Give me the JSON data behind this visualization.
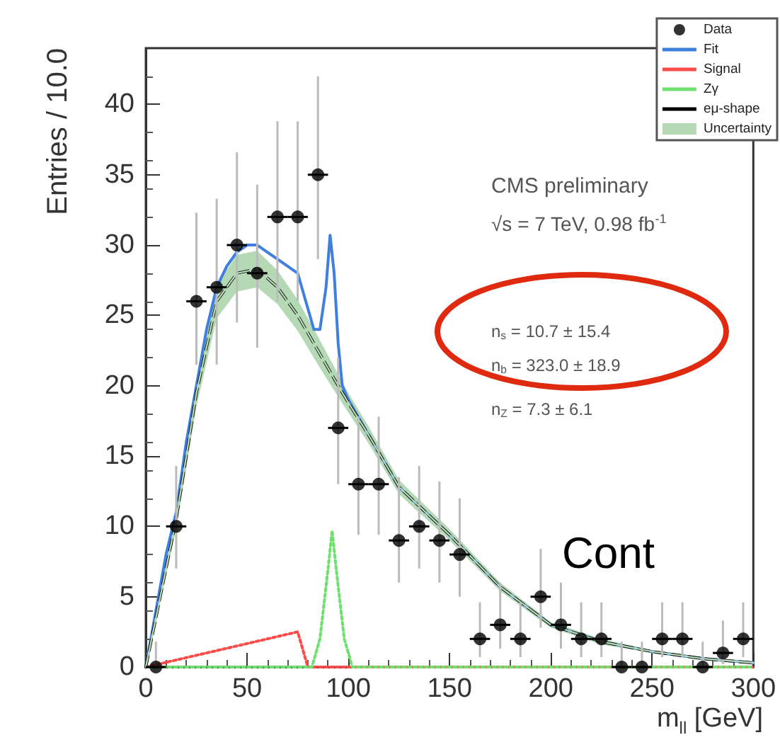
{
  "chart_data": {
    "type": "scatter",
    "xlabel": "m$_{ll}$ [GeV]",
    "ylabel": "Entries / 10.0",
    "xlim": [
      0,
      300
    ],
    "xticks": [
      0,
      50,
      100,
      150,
      200,
      250,
      300
    ],
    "ylim": [
      0,
      44
    ],
    "yticks": [
      0,
      5,
      10,
      15,
      20,
      25,
      30,
      35,
      40
    ],
    "grid": false,
    "legend": "top right",
    "marker": "circle",
    "annotations": [
      "CMS preliminary",
      "√s = 7 TeV, 0.98 fb$^{-1}$",
      "n$_{s}$ = 10.7 ± 15.4",
      "n$_{b}$ = 323.0 ± 18.9",
      "n$_{Z}$ = 7.3 ± 6.1",
      "Cont"
    ],
    "series": [
      {
        "name": "Data",
        "type": "scatter",
        "color": "#000000",
        "x": [
          5,
          15,
          25,
          35,
          45,
          55,
          65,
          75,
          85,
          95,
          105,
          115,
          125,
          135,
          145,
          155,
          165,
          175,
          185,
          195,
          205,
          215,
          225,
          235,
          245,
          255,
          265,
          275,
          285,
          295
        ],
        "values": [
          0,
          10,
          26,
          27,
          30,
          28,
          32,
          32,
          35,
          17,
          13,
          13,
          9,
          10,
          9,
          8,
          2,
          3,
          2,
          5,
          3,
          2,
          2,
          0,
          0,
          2,
          2,
          0,
          1,
          2
        ],
        "errors": [
          [
            0,
            1.8
          ],
          [
            7,
            14.3
          ],
          [
            21.5,
            32.3
          ],
          [
            21.5,
            33.3
          ],
          [
            24.5,
            36.6
          ],
          [
            22.7,
            34.3
          ],
          [
            26,
            38.8
          ],
          [
            26,
            38.8
          ],
          [
            29,
            42
          ],
          [
            13,
            22
          ],
          [
            9.4,
            17.8
          ],
          [
            9.4,
            17.8
          ],
          [
            6,
            13.5
          ],
          [
            7,
            14.3
          ],
          [
            6,
            13.2
          ],
          [
            5,
            12
          ],
          [
            0.7,
            4.6
          ],
          [
            1.3,
            6
          ],
          [
            0.7,
            4.6
          ],
          [
            2.8,
            8.4
          ],
          [
            1.3,
            6
          ],
          [
            0.7,
            4.6
          ],
          [
            0.7,
            4.6
          ],
          [
            0,
            1.8
          ],
          [
            0,
            1.8
          ],
          [
            0.7,
            4.6
          ],
          [
            0.7,
            4.6
          ],
          [
            0,
            1.8
          ],
          [
            0.2,
            3.3
          ],
          [
            0.7,
            4.6
          ]
        ],
        "xerrors": [
          5,
          5,
          5,
          5,
          5,
          5,
          5,
          5,
          5,
          5,
          5,
          5,
          5,
          5,
          5,
          5,
          5,
          5,
          5,
          5,
          5,
          5,
          5,
          5,
          5,
          5,
          5,
          5,
          5,
          5
        ]
      },
      {
        "name": "Fit",
        "type": "line",
        "color": "#3f7fe0",
        "line_style": "solid",
        "marker": "none",
        "x": [
          0,
          10,
          15,
          20,
          25,
          30,
          35,
          40,
          45,
          50,
          55,
          60,
          65,
          70,
          75,
          80,
          83,
          86,
          89,
          91,
          93,
          95,
          97,
          100,
          110,
          125,
          150,
          175,
          200,
          225,
          250,
          275,
          300
        ],
        "values": [
          0,
          8,
          11,
          16,
          20,
          24,
          27,
          28.5,
          29.5,
          30,
          30,
          29.5,
          29,
          28.5,
          28,
          25.5,
          24,
          24,
          27,
          30.7,
          28,
          23,
          20,
          19,
          16.5,
          12.8,
          9.4,
          5.7,
          3,
          1.8,
          1.1,
          0.6,
          0.3
        ]
      },
      {
        "name": "Signal",
        "type": "line",
        "color": "#ff4a4a",
        "line_style": "dotted",
        "marker": "none",
        "x": [
          0,
          75,
          80,
          300
        ],
        "values": [
          0,
          2.5,
          0,
          0
        ]
      },
      {
        "name": "Zγ",
        "type": "line",
        "color": "#6fe06f",
        "line_style": "dotted",
        "marker": "none",
        "x": [
          0,
          82,
          86,
          90,
          92,
          94,
          98,
          102,
          300
        ],
        "values": [
          0,
          0,
          2,
          7,
          9.7,
          7,
          2,
          0,
          0
        ]
      },
      {
        "name": "eμ-shape",
        "type": "line",
        "color": "#000000",
        "line_style": "dashed",
        "marker": "none",
        "x": [
          0,
          15,
          25,
          35,
          45,
          55,
          65,
          75,
          85,
          95,
          100,
          110,
          125,
          150,
          175,
          200,
          225,
          250,
          275,
          300
        ],
        "values": [
          0,
          10.5,
          19.5,
          26,
          28,
          28.3,
          27,
          25,
          22.5,
          20,
          18.8,
          16.5,
          12.8,
          9.4,
          5.7,
          3,
          1.8,
          1.1,
          0.6,
          0.3
        ]
      },
      {
        "name": "Uncertainty",
        "type": "line",
        "color": "#b5d8b5",
        "line_style": "solid",
        "marker": "none",
        "x": [
          0,
          15,
          25,
          35,
          45,
          55,
          65,
          75,
          85,
          95,
          100,
          110,
          125,
          150,
          175,
          200,
          225,
          250,
          275,
          300
        ],
        "values": [
          0,
          10.5,
          19.5,
          26,
          28,
          28.3,
          27,
          25,
          22.5,
          20,
          18.8,
          16.5,
          12.8,
          9.4,
          5.7,
          3,
          1.8,
          1.1,
          0.6,
          0.3
        ],
        "lower": [
          0,
          9.8,
          18.5,
          24.8,
          26.7,
          27,
          25.8,
          23.9,
          21.5,
          19.2,
          18.1,
          15.9,
          12.3,
          9,
          5.4,
          2.8,
          1.6,
          1,
          0.5,
          0.2
        ],
        "upper": [
          0,
          11.2,
          20.5,
          27.2,
          29.3,
          29.6,
          28.2,
          26.1,
          23.5,
          20.8,
          19.5,
          17.1,
          13.3,
          9.8,
          6,
          3.2,
          2,
          1.2,
          0.7,
          0.4
        ]
      }
    ]
  }
}
